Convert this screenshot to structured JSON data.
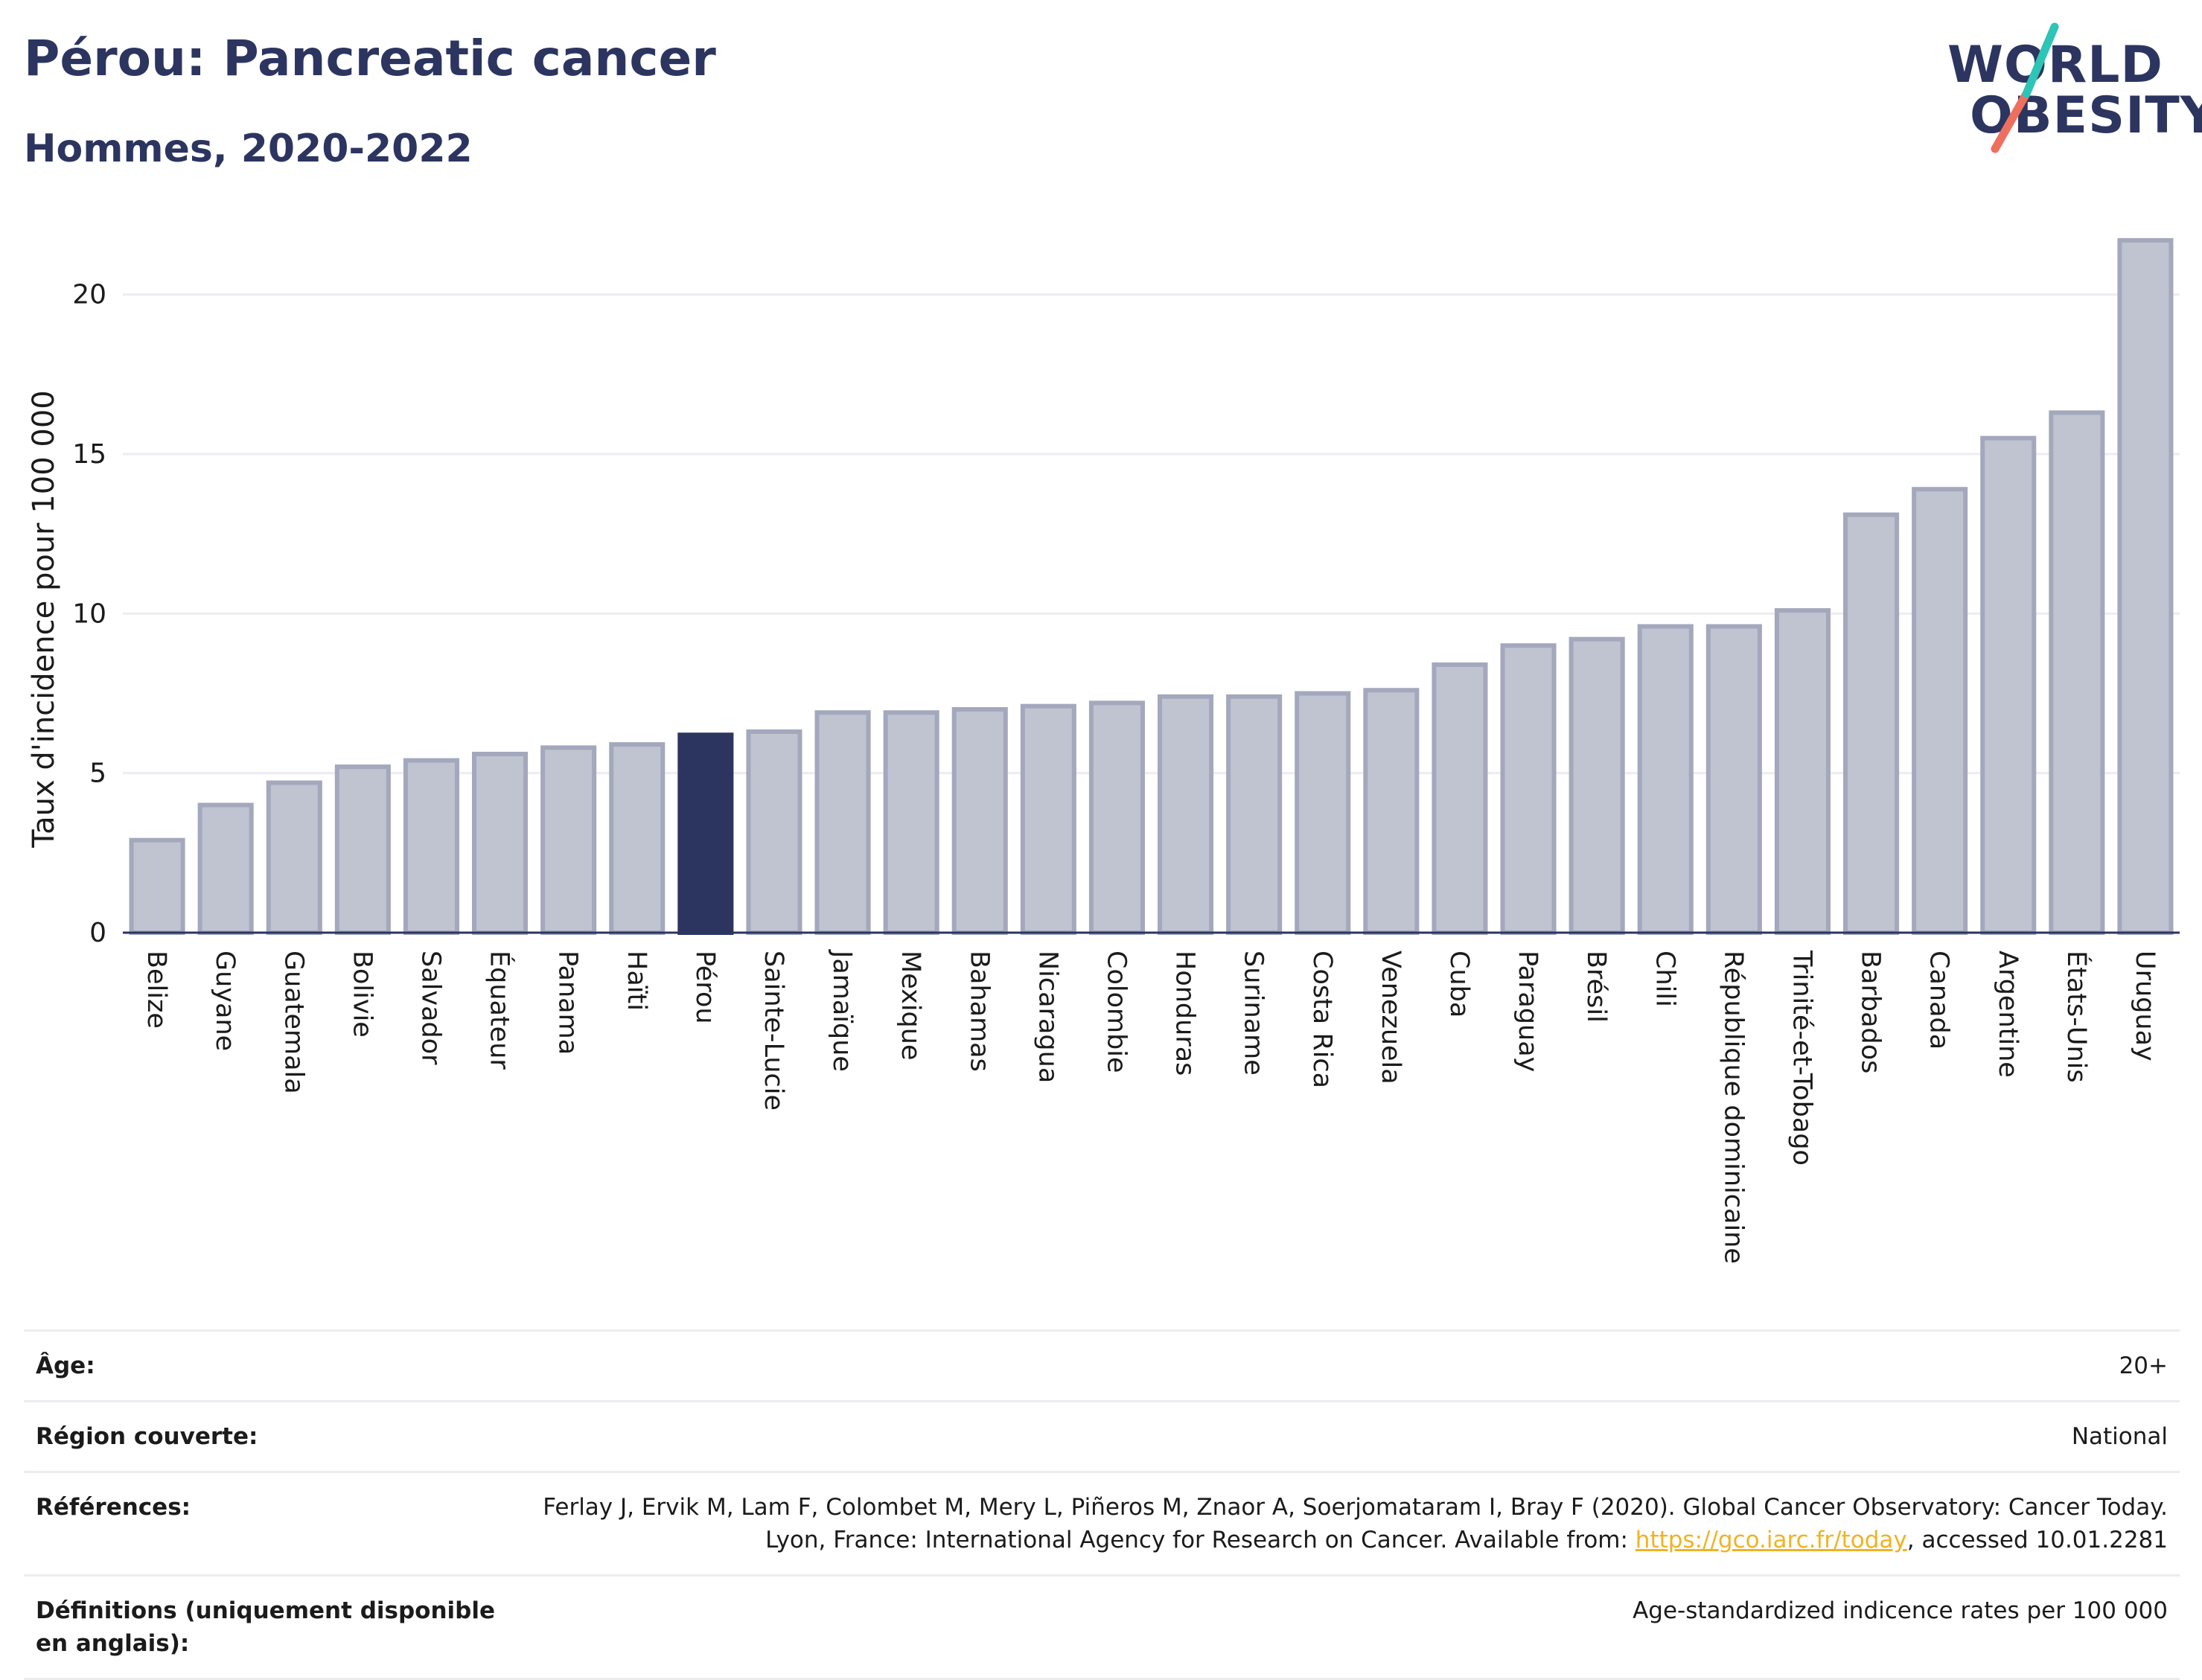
{
  "header": {
    "title": "Pérou: Pancreatic cancer",
    "subtitle": "Hommes, 2020-2022"
  },
  "logo": {
    "line1": "WORLD",
    "line2": "OBESITY",
    "colors": {
      "text": "#2c3560",
      "accent_teal": "#2ec4b6",
      "accent_coral": "#ef6f5e"
    }
  },
  "colors": {
    "bar_default": "#c0c3d0",
    "bar_border": "#a3a8bd",
    "bar_highlight": "#2c3560",
    "grid": "#ececf2",
    "axis": "#2c3560"
  },
  "chart_data": {
    "type": "bar",
    "title": "",
    "xlabel": "",
    "ylabel": "Taux d'incidence pour 100 000",
    "ylim": [
      0,
      22
    ],
    "yticks": [
      0,
      5,
      10,
      15,
      20
    ],
    "grid": true,
    "highlight": "Pérou",
    "categories": [
      "Belize",
      "Guyane",
      "Guatemala",
      "Bolivie",
      "Salvador",
      "Équateur",
      "Panama",
      "Haïti",
      "Pérou",
      "Sainte-Lucie",
      "Jamaïque",
      "Mexique",
      "Bahamas",
      "Nicaragua",
      "Colombie",
      "Honduras",
      "Suriname",
      "Costa Rica",
      "Venezuela",
      "Cuba",
      "Paraguay",
      "Brésil",
      "Chili",
      "République dominicaine",
      "Trinité-et-Tobago",
      "Barbados",
      "Canada",
      "Argentine",
      "États-Unis",
      "Uruguay"
    ],
    "values": [
      2.9,
      4.0,
      4.7,
      5.2,
      5.4,
      5.6,
      5.8,
      5.9,
      6.2,
      6.3,
      6.9,
      6.9,
      7.0,
      7.1,
      7.2,
      7.4,
      7.4,
      7.5,
      7.6,
      8.4,
      9.0,
      9.2,
      9.6,
      9.6,
      10.1,
      13.1,
      13.9,
      15.5,
      16.3,
      21.7
    ]
  },
  "meta": {
    "rows": [
      {
        "key": "Âge:",
        "value": "20+"
      },
      {
        "key": "Région couverte:",
        "value": "National"
      },
      {
        "key": "Références:",
        "value_before": "Ferlay J, Ervik M, Lam F, Colombet M, Mery L, Piñeros M, Znaor A, Soerjomataram I, Bray F (2020). Global Cancer Observatory: Cancer Today. Lyon, France: International Agency for Research on Cancer. Available from: ",
        "link": "https://gco.iarc.fr/today",
        "value_after": ", accessed 10.01.2281"
      },
      {
        "key": "Définitions (uniquement disponible en anglais):",
        "value": "Age-standardized indicence rates per 100 000"
      }
    ]
  }
}
